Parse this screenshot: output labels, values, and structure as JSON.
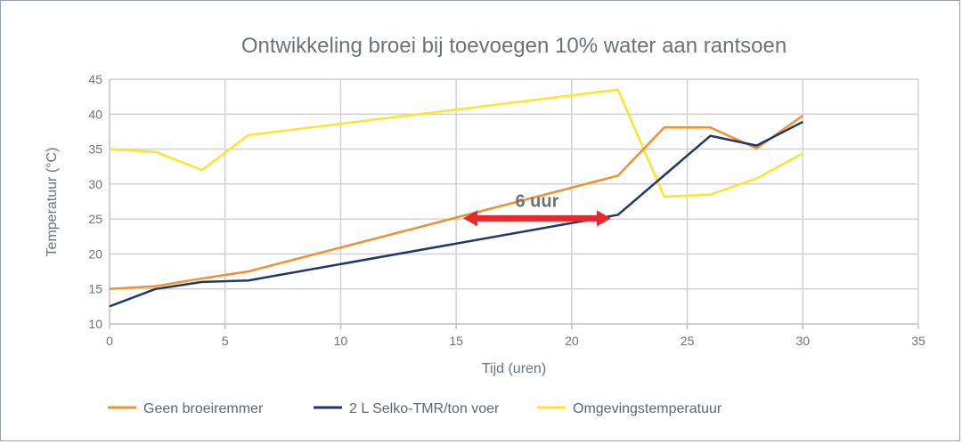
{
  "chart_data": {
    "type": "line",
    "title": "Ontwikkeling broei bij toevoegen 10% water aan rantsoen",
    "xlabel": "Tijd (uren)",
    "ylabel": "Temperatuur (°C)",
    "xlim": [
      0,
      35
    ],
    "ylim": [
      10,
      45
    ],
    "xticks": [
      "0",
      "5",
      "10",
      "15",
      "20",
      "25",
      "30",
      "35"
    ],
    "yticks": [
      "10",
      "15",
      "20",
      "25",
      "30",
      "35",
      "40",
      "45"
    ],
    "grid": true,
    "legend_position": "bottom",
    "series": [
      {
        "name": "Geen broeiremmer",
        "color": "#f0912e",
        "x": [
          0,
          2,
          4,
          6,
          22,
          24,
          26,
          28,
          30
        ],
        "y": [
          15,
          15.4,
          16.5,
          17.5,
          31.2,
          38.1,
          38.1,
          35.1,
          39.8
        ]
      },
      {
        "name": "2 L Selko-TMR/ton voer",
        "color": "#1f3864",
        "x": [
          0,
          2,
          4,
          6,
          22,
          26,
          28,
          30
        ],
        "y": [
          12.5,
          15,
          16,
          16.2,
          25.6,
          36.9,
          35.5,
          38.9
        ]
      },
      {
        "name": "Omgevingstemperatuur",
        "color": "#ffe42b",
        "x": [
          0,
          2,
          4,
          6,
          22,
          24,
          26,
          28,
          30
        ],
        "y": [
          35,
          34.6,
          32,
          37,
          43.5,
          28.2,
          28.5,
          30.8,
          34.4
        ]
      }
    ],
    "annotation": {
      "text": "6 uur",
      "color": "#e32b2f",
      "x_start": 15.3,
      "x_end": 21.7,
      "y": 25.1
    }
  }
}
